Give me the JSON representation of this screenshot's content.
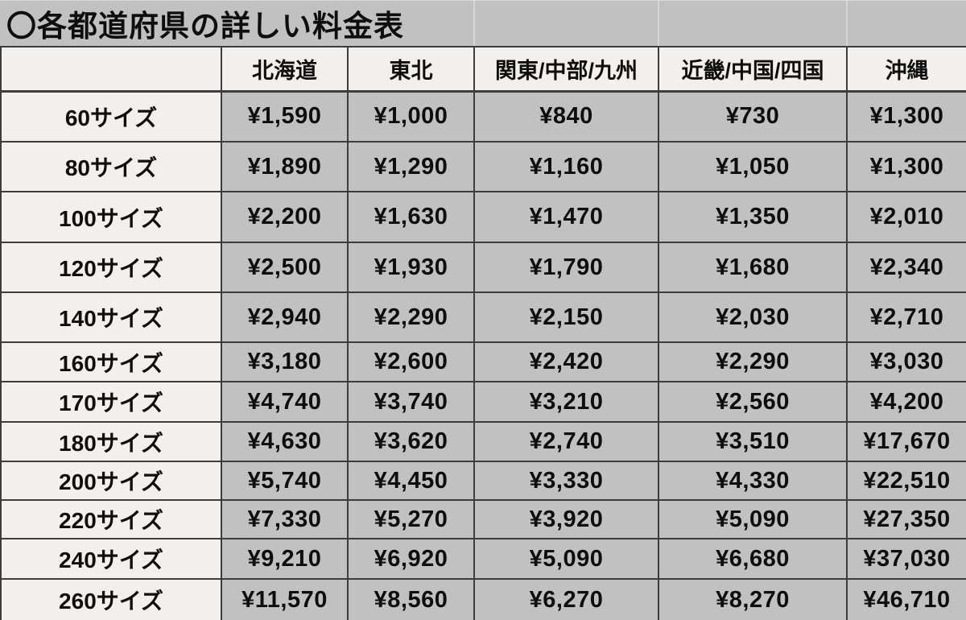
{
  "title": "〇各都道府県の詳しい料金表",
  "chart_data": {
    "type": "table",
    "title": "〇各都道府県の詳しい料金表",
    "columns": [
      "",
      "北海道",
      "東北",
      "関東/中部/九州",
      "近畿/中国/四国",
      "沖縄"
    ],
    "rows": [
      [
        "60サイズ",
        "¥1,590",
        "¥1,000",
        "¥840",
        "¥730",
        "¥1,300"
      ],
      [
        "80サイズ",
        "¥1,890",
        "¥1,290",
        "¥1,160",
        "¥1,050",
        "¥1,300"
      ],
      [
        "100サイズ",
        "¥2,200",
        "¥1,630",
        "¥1,470",
        "¥1,350",
        "¥2,010"
      ],
      [
        "120サイズ",
        "¥2,500",
        "¥1,930",
        "¥1,790",
        "¥1,680",
        "¥2,340"
      ],
      [
        "140サイズ",
        "¥2,940",
        "¥2,290",
        "¥2,150",
        "¥2,030",
        "¥2,710"
      ],
      [
        "160サイズ",
        "¥3,180",
        "¥2,600",
        "¥2,420",
        "¥2,290",
        "¥3,030"
      ],
      [
        "170サイズ",
        "¥4,740",
        "¥3,740",
        "¥3,210",
        "¥2,560",
        "¥4,200"
      ],
      [
        "180サイズ",
        "¥4,630",
        "¥3,620",
        "¥2,740",
        "¥3,510",
        "¥17,670"
      ],
      [
        "200サイズ",
        "¥5,740",
        "¥4,450",
        "¥3,330",
        "¥4,330",
        "¥22,510"
      ],
      [
        "220サイズ",
        "¥7,330",
        "¥5,270",
        "¥3,920",
        "¥5,090",
        "¥27,350"
      ],
      [
        "240サイズ",
        "¥9,210",
        "¥6,920",
        "¥5,090",
        "¥6,680",
        "¥37,030"
      ],
      [
        "260サイズ",
        "¥11,570",
        "¥8,560",
        "¥6,270",
        "¥8,270",
        "¥46,710"
      ]
    ],
    "values_numeric": {
      "unit": "JPY",
      "sizes": [
        60,
        80,
        100,
        120,
        140,
        160,
        170,
        180,
        200,
        220,
        240,
        260
      ],
      "series": [
        {
          "name": "北海道",
          "values": [
            1590,
            1890,
            2200,
            2500,
            2940,
            3180,
            4740,
            4630,
            5740,
            7330,
            9210,
            11570
          ]
        },
        {
          "name": "東北",
          "values": [
            1000,
            1290,
            1630,
            1930,
            2290,
            2600,
            3740,
            3620,
            4450,
            5270,
            6920,
            8560
          ]
        },
        {
          "name": "関東/中部/九州",
          "values": [
            840,
            1160,
            1470,
            1790,
            2150,
            2420,
            3210,
            2740,
            3330,
            3920,
            5090,
            6270
          ]
        },
        {
          "name": "近畿/中国/四国",
          "values": [
            730,
            1050,
            1350,
            1680,
            2030,
            2290,
            2560,
            3510,
            4330,
            5090,
            6680,
            8270
          ]
        },
        {
          "name": "沖縄",
          "values": [
            1300,
            1300,
            2010,
            2340,
            2710,
            3030,
            4200,
            17670,
            22510,
            27350,
            37030,
            46710
          ]
        }
      ]
    }
  },
  "colors": {
    "cell_gray": "#c1c1c1",
    "cell_light": "#f1f0ee",
    "border_dark": "#3d3d3d",
    "title_divider": "#d6d6d6",
    "text": "#0e0e0e"
  }
}
